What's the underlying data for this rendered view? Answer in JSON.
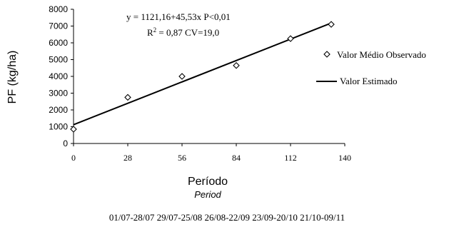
{
  "chart_data": {
    "type": "scatter",
    "title": "",
    "xlabel": "Período",
    "xlabel_sub": "Period",
    "ylabel": "PF (kg/ha)",
    "xlim": [
      0,
      140
    ],
    "ylim": [
      0,
      8000
    ],
    "x_ticks": [
      0,
      28,
      56,
      84,
      112,
      140
    ],
    "y_ticks": [
      0,
      1000,
      2000,
      3000,
      4000,
      5000,
      6000,
      7000,
      8000
    ],
    "series": [
      {
        "name": "Valor Médio Observado",
        "marker": "diamond",
        "x": [
          0,
          28,
          56,
          84,
          112,
          133
        ],
        "y": [
          850,
          2750,
          4000,
          4650,
          6250,
          7100
        ]
      },
      {
        "name": "Valor Estimado",
        "style": "line",
        "intercept": 1121.16,
        "slope": 45.53,
        "x_range": [
          0,
          133
        ]
      }
    ],
    "annotations": {
      "equation_line1": "y = 1121,16+45,53x  P<0,01",
      "equation_line2_r": "R",
      "equation_line2_sup": "2",
      "equation_line2_rest": " = 0,87   CV=19,0"
    },
    "date_ranges": "01/07-28/07 29/07-25/08 26/08-22/09 23/09-20/10 21/10-09/11",
    "legend_position": "right",
    "grid": false
  }
}
